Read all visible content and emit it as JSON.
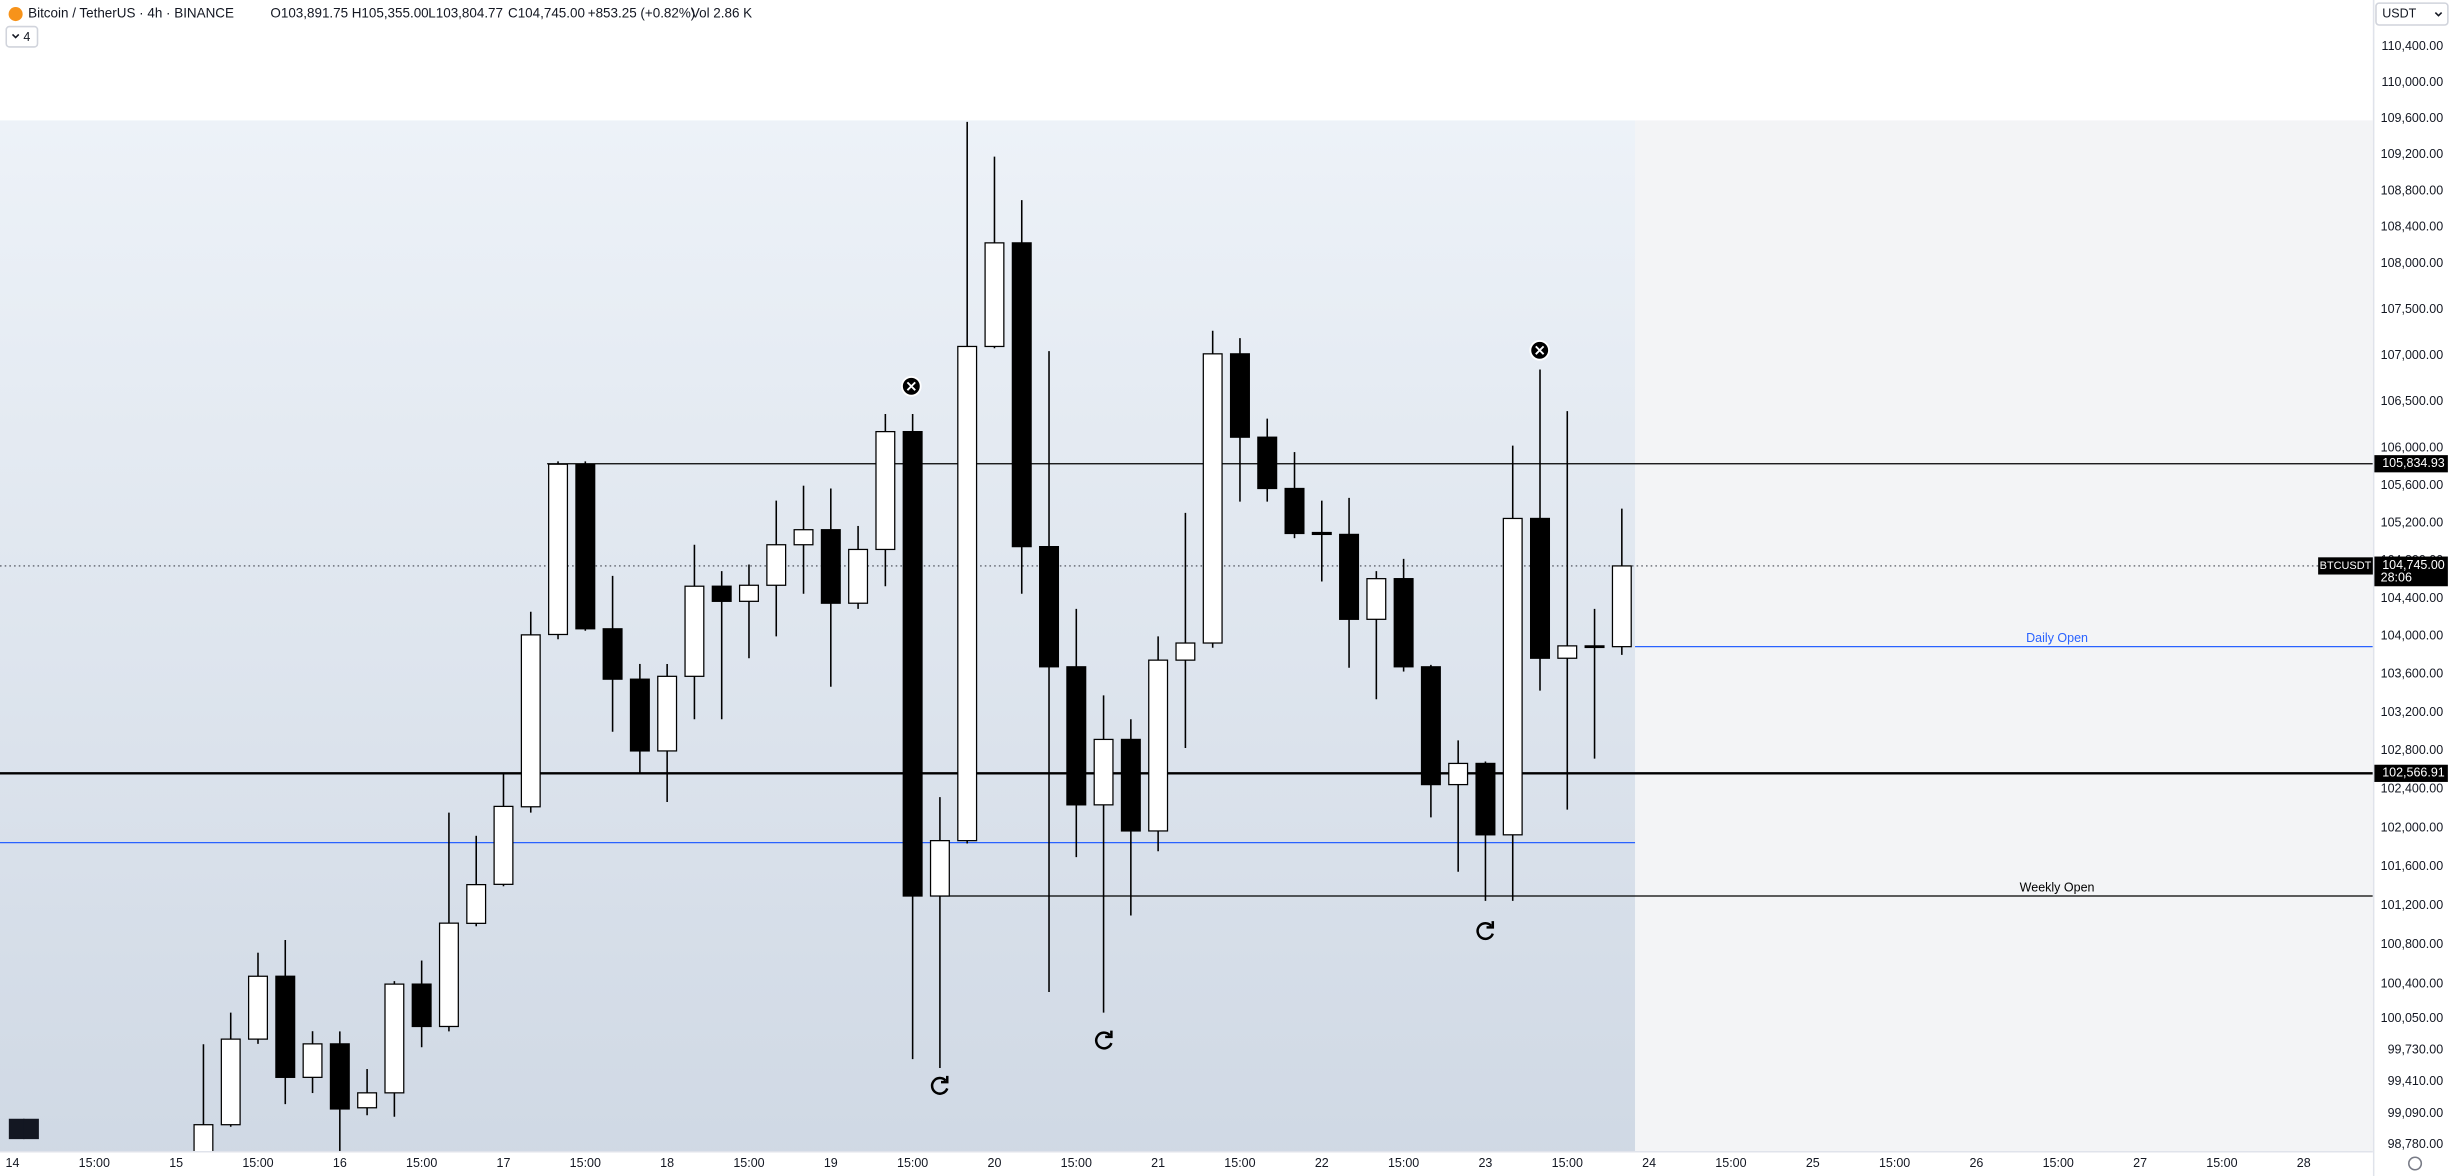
{
  "header": {
    "symbol": "Bitcoin / TetherUS · 4h · BINANCE",
    "open": "O103,891.75",
    "high": "H105,355.00",
    "low": "L103,804.77",
    "close": "C104,745.00",
    "change": "+853.25 (+0.82%)",
    "volume": "Vol 2.86 K",
    "indicator_count": "4",
    "currency": "USDT"
  },
  "chart_data": {
    "type": "candlestick",
    "log": true,
    "grid": false,
    "up_color": "#ffffff",
    "down_color": "#000000",
    "border_color": "#000000",
    "categories": [
      "14",
      null,
      null,
      "15:00",
      null,
      null,
      "15",
      null,
      null,
      "15:00",
      null,
      null,
      "16",
      null,
      null,
      "15:00",
      null,
      null,
      "17",
      null,
      null,
      "15:00",
      null,
      null,
      "18",
      null,
      null,
      "15:00",
      null,
      null,
      "19",
      null,
      null,
      "15:00",
      null,
      null,
      "20",
      null,
      null,
      "15:00",
      null,
      null,
      "21",
      null,
      null,
      "15:00",
      null,
      null,
      "22",
      null,
      null,
      "15:00",
      null,
      null,
      "23",
      null,
      null,
      "15:00",
      null,
      null,
      "24",
      null,
      null,
      "15:00",
      null,
      null,
      "25",
      null,
      null,
      "15:00",
      null,
      null,
      "26",
      null,
      null,
      "15:00",
      null,
      null,
      "27",
      null,
      null,
      "15:00",
      null,
      null,
      "28",
      null,
      null
    ],
    "open": [
      null,
      null,
      null,
      null,
      null,
      null,
      null,
      98600,
      98980,
      99842,
      100480,
      99456,
      99794,
      99150,
      99300,
      100400,
      99970,
      101020,
      101420,
      102220,
      104020,
      105830,
      104080,
      103550,
      102800,
      103580,
      104530,
      104370,
      104540,
      104970,
      105130,
      104350,
      104920,
      106180,
      101300,
      101870,
      107100,
      108230,
      104950,
      103680,
      102240,
      102920,
      101970,
      103750,
      103930,
      107020,
      106120,
      105570,
      105100,
      105080,
      104180,
      104610,
      103680,
      102450,
      102670,
      101930,
      105250,
      103770,
      103900,
      103891.75,
      null,
      null,
      null,
      null,
      null,
      null,
      null,
      null,
      null,
      null,
      null,
      null,
      null,
      null,
      null,
      null,
      null,
      null,
      null,
      null,
      null,
      null,
      null,
      null,
      null,
      null,
      null
    ],
    "high": [
      null,
      null,
      null,
      null,
      null,
      null,
      null,
      99790,
      100110,
      100720,
      100850,
      99922,
      99920,
      99540,
      100430,
      100640,
      102160,
      101920,
      102560,
      104260,
      105860,
      105860,
      104640,
      103710,
      103710,
      104970,
      104690,
      104760,
      105440,
      105600,
      105570,
      105170,
      106370,
      106370,
      102320,
      109565,
      109180,
      108700,
      107050,
      104290,
      103380,
      103130,
      104000,
      105310,
      107270,
      107190,
      106320,
      105960,
      105440,
      105470,
      104690,
      104820,
      103700,
      102910,
      102690,
      106030,
      106850,
      106400,
      104290,
      105355,
      null,
      null,
      null,
      null,
      null,
      null,
      null,
      null,
      null,
      null,
      null,
      null,
      null,
      null,
      null,
      null,
      null,
      null,
      null,
      null,
      null,
      null,
      null,
      null,
      null,
      null,
      null
    ],
    "low": [
      null,
      null,
      null,
      null,
      null,
      null,
      null,
      98500,
      98960,
      99794,
      99186,
      99298,
      98700,
      99075,
      99060,
      99760,
      99920,
      100990,
      101400,
      102160,
      103970,
      104060,
      103000,
      102560,
      102270,
      103130,
      103130,
      103770,
      104000,
      104450,
      103470,
      104290,
      104530,
      99640,
      99550,
      101840,
      107080,
      104450,
      100320,
      101700,
      100110,
      101100,
      101760,
      102830,
      103880,
      105430,
      105430,
      105040,
      104580,
      103670,
      103340,
      103630,
      102110,
      101550,
      101250,
      101250,
      103430,
      102190,
      102720,
      103804.77,
      null,
      null,
      null,
      null,
      null,
      null,
      null,
      null,
      null,
      null,
      null,
      null,
      null,
      null,
      null,
      null,
      null,
      null,
      null,
      null,
      null,
      null,
      null,
      null,
      null,
      null,
      null
    ],
    "close": [
      null,
      null,
      null,
      null,
      null,
      null,
      null,
      98980,
      99842,
      100480,
      99456,
      99794,
      99138,
      99300,
      100400,
      99970,
      101022,
      101417,
      102224,
      104016,
      105830,
      104080,
      103550,
      102800,
      103580,
      104530,
      104370,
      104540,
      104970,
      105130,
      104350,
      104920,
      106180,
      101300,
      101870,
      107100,
      108230,
      104950,
      103680,
      102240,
      102920,
      101970,
      103750,
      103930,
      107020,
      106120,
      105570,
      105090,
      105080,
      104180,
      104610,
      103680,
      102450,
      102670,
      101930,
      105250,
      103770,
      103900,
      103891.75,
      104745,
      null,
      null,
      null,
      null,
      null,
      null,
      null,
      null,
      null,
      null,
      null,
      null,
      null,
      null,
      null,
      null,
      null,
      null,
      null,
      null,
      null,
      null,
      null,
      null,
      null,
      null,
      null
    ],
    "ylim": [
      98467,
      110926
    ],
    "yticks": [
      {
        "value": 110400,
        "label": "110,400.00"
      },
      {
        "value": 110000,
        "label": "110,000.00"
      },
      {
        "value": 109600,
        "label": "109,600.00"
      },
      {
        "value": 109200,
        "label": "109,200.00"
      },
      {
        "value": 108800,
        "label": "108,800.00"
      },
      {
        "value": 108400,
        "label": "108,400.00"
      },
      {
        "value": 108000,
        "label": "108,000.00"
      },
      {
        "value": 107500,
        "label": "107,500.00"
      },
      {
        "value": 107000,
        "label": "107,000.00"
      },
      {
        "value": 106500,
        "label": "106,500.00"
      },
      {
        "value": 106000,
        "label": "106,000.00"
      },
      {
        "value": 105600,
        "label": "105,600.00"
      },
      {
        "value": 105200,
        "label": "105,200.00"
      },
      {
        "value": 104800,
        "label": "104,800.00"
      },
      {
        "value": 104400,
        "label": "104,400.00"
      },
      {
        "value": 104000,
        "label": "104,000.00"
      },
      {
        "value": 103600,
        "label": "103,600.00"
      },
      {
        "value": 103200,
        "label": "103,200.00"
      },
      {
        "value": 102800,
        "label": "102,800.00"
      },
      {
        "value": 102400,
        "label": "102,400.00"
      },
      {
        "value": 102000,
        "label": "102,000.00"
      },
      {
        "value": 101600,
        "label": "101,600.00"
      },
      {
        "value": 101200,
        "label": "101,200.00"
      },
      {
        "value": 100800,
        "label": "100,800.00"
      },
      {
        "value": 100400,
        "label": "100,400.00"
      },
      {
        "value": 100050,
        "label": "100,050.00"
      },
      {
        "value": 99730,
        "label": "99,730.00"
      },
      {
        "value": 99410,
        "label": "99,410.00"
      },
      {
        "value": 99090,
        "label": "99,090.00"
      },
      {
        "value": 98780,
        "label": "98,780.00"
      }
    ],
    "levels": [
      {
        "value": 105834.93,
        "label": "105,834.93"
      },
      {
        "value": 102566.91,
        "label": "102,566.91"
      }
    ],
    "hlines": [
      {
        "name": "Daily Open",
        "value": 103891.75,
        "color": "#2962ff"
      },
      {
        "name": "Weekly Open",
        "value": 101300,
        "color": "#000000"
      },
      {
        "value": 101850,
        "color": "#2962ff"
      }
    ],
    "last_price": {
      "value": 104745,
      "label": "104,745.00",
      "symbol": "BTCUSDT",
      "countdown": "28:06"
    }
  }
}
